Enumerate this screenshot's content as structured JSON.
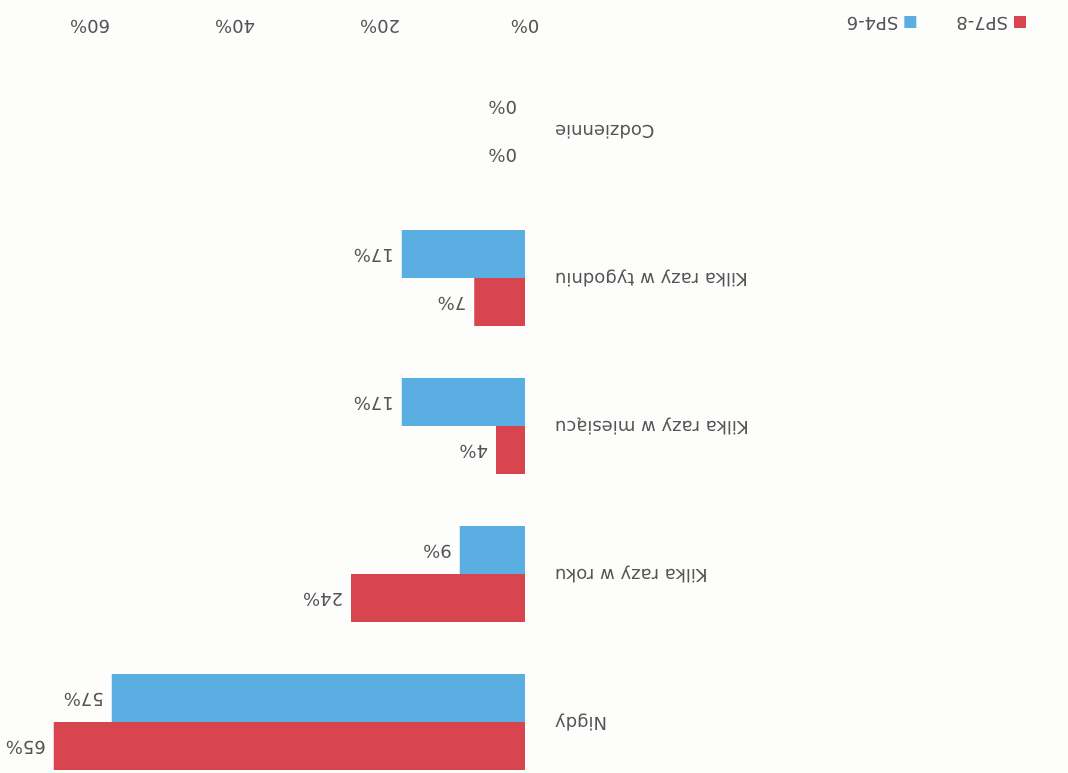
{
  "chart_data": {
    "type": "barh",
    "categories": [
      "Nigdy",
      "Kilka razy w roku",
      "Kilka razy w miesiącu",
      "Kilka razy w tygodniu",
      "Codziennie"
    ],
    "series": [
      {
        "name": "SP7-8",
        "color": "#d9454e",
        "values": [
          65,
          24,
          4,
          7,
          0
        ],
        "value_labels": [
          "65%",
          "24%",
          "4%",
          "7%",
          "0%"
        ]
      },
      {
        "name": "SP4-6",
        "color": "#5aaee2",
        "values": [
          57,
          9,
          17,
          17,
          0
        ],
        "value_labels": [
          "57%",
          "9%",
          "17%",
          "17%",
          "0%"
        ]
      }
    ],
    "xlim": [
      0,
      60
    ],
    "xticks": [
      {
        "value": 0,
        "label": "0%"
      },
      {
        "value": 20,
        "label": "20%"
      },
      {
        "value": 40,
        "label": "40%"
      },
      {
        "value": 60,
        "label": "60%"
      }
    ],
    "rotated": 180
  }
}
